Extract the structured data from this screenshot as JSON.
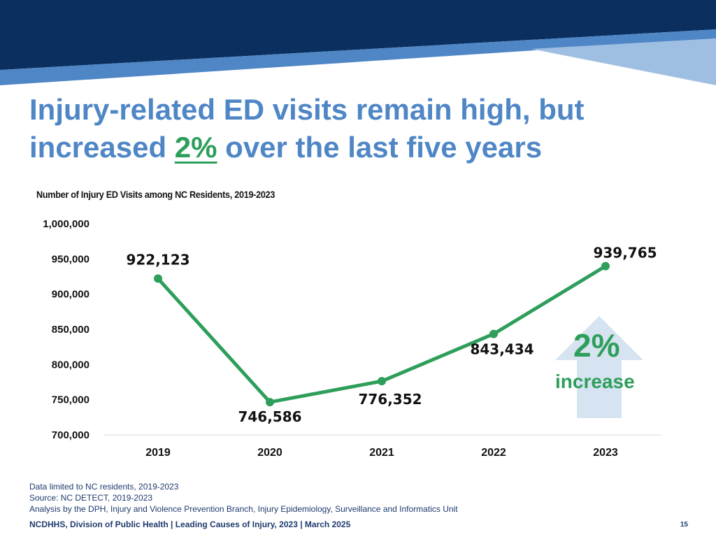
{
  "slide": {
    "title_line1": "Injury-related ED visits remain high, but",
    "title_pre": "increased ",
    "title_pct": "2%",
    "title_post": " over the last five years"
  },
  "chart_data": {
    "type": "line",
    "title": "Number of Injury ED Visits among NC Residents, 2019-2023",
    "categories": [
      "2019",
      "2020",
      "2021",
      "2022",
      "2023"
    ],
    "series": [
      {
        "values": [
          922123,
          746586,
          776352,
          843434,
          939765
        ],
        "color": "#2e9e5b"
      }
    ],
    "data_labels": [
      "922,123",
      "746,586",
      "776,352",
      "843,434",
      "939,765"
    ],
    "y_ticks": [
      "1,000,000",
      "950,000",
      "900,000",
      "850,000",
      "800,000",
      "750,000",
      "700,000"
    ],
    "ylim": [
      700000,
      1000000
    ],
    "grid": false
  },
  "callout": {
    "pct": "2%",
    "text": "increase",
    "arrow_direction": "up"
  },
  "notes": [
    "Data limited to NC residents, 2019-2023",
    "Source: NC DETECT, 2019-2023",
    "Analysis by the DPH, Injury and Violence Prevention Branch, Injury Epidemiology, Surveillance and Informatics Unit"
  ],
  "footer": {
    "text": "NCDHHS, Division of Public Health | Leading Causes of Injury, 2023 | March 2025",
    "page": "15"
  },
  "colors": {
    "navy": "#0b2f5e",
    "blue": "#4f86c6",
    "light_blue": "#9fbfe2",
    "green": "#2e9e5b",
    "arrow_fill": "#d6e3f0"
  }
}
